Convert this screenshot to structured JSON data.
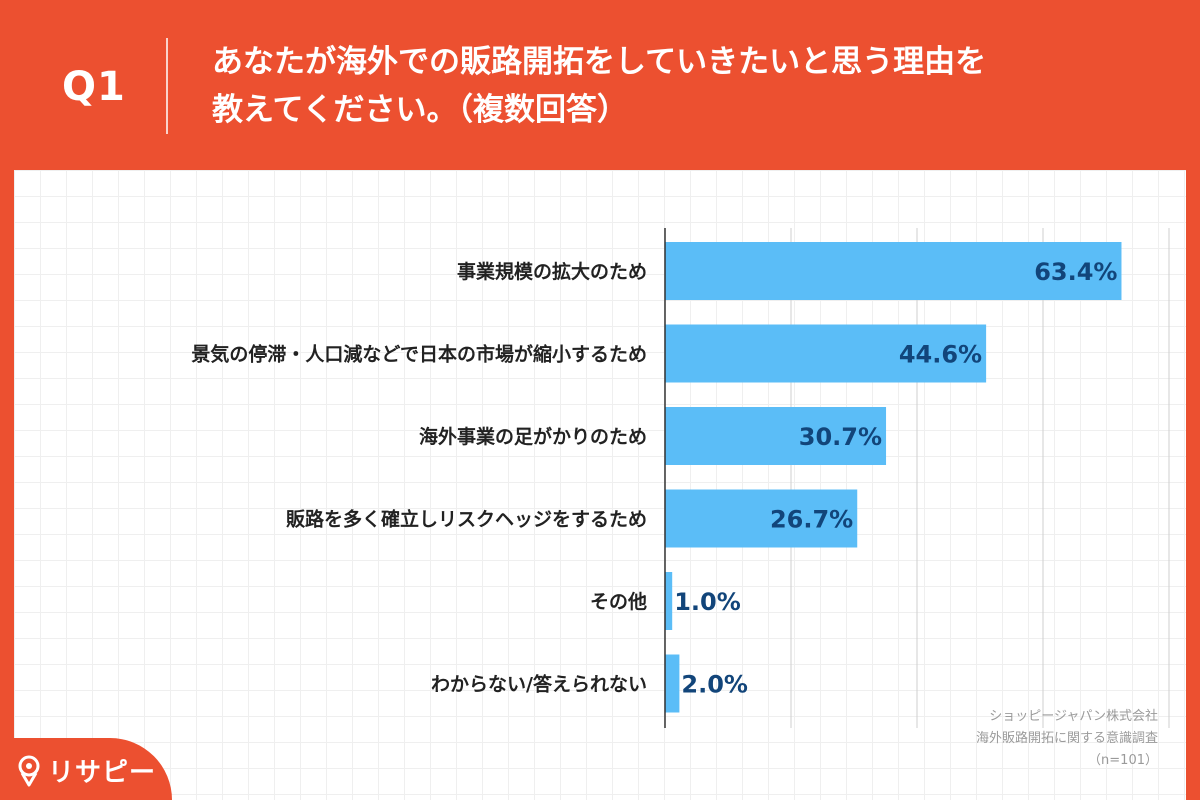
{
  "header": {
    "question_label": "Q1",
    "title_line1": "あなたが海外での販路開拓をしていきたいと思う理由を",
    "title_line2": "教えてください。（複数回答）"
  },
  "chart_data": {
    "type": "bar",
    "orientation": "horizontal",
    "categories": [
      "事業規模の拡大のため",
      "景気の停滞・人口減などで日本の市場が縮小するため",
      "海外事業の足がかりのため",
      "販路を多く確立しリスクヘッジをするため",
      "その他",
      "わからない/答えられない"
    ],
    "values": [
      63.4,
      44.6,
      30.7,
      26.7,
      1.0,
      2.0
    ],
    "value_labels": [
      "63.4%",
      "44.6%",
      "30.7%",
      "26.7%",
      "1.0%",
      "2.0%"
    ],
    "xlim": [
      0,
      70
    ],
    "grid_step": 17.5,
    "bar_color": "#5bbdf7",
    "value_label_color": "#12457a"
  },
  "source": {
    "line1": "ショッピージャパン株式会社",
    "line2": "海外販路開拓に関する意識調査",
    "line3": "（n=101）"
  },
  "logo": {
    "text": "リサピー"
  },
  "colors": {
    "accent": "#ec5030",
    "panel": "#ffffff"
  }
}
